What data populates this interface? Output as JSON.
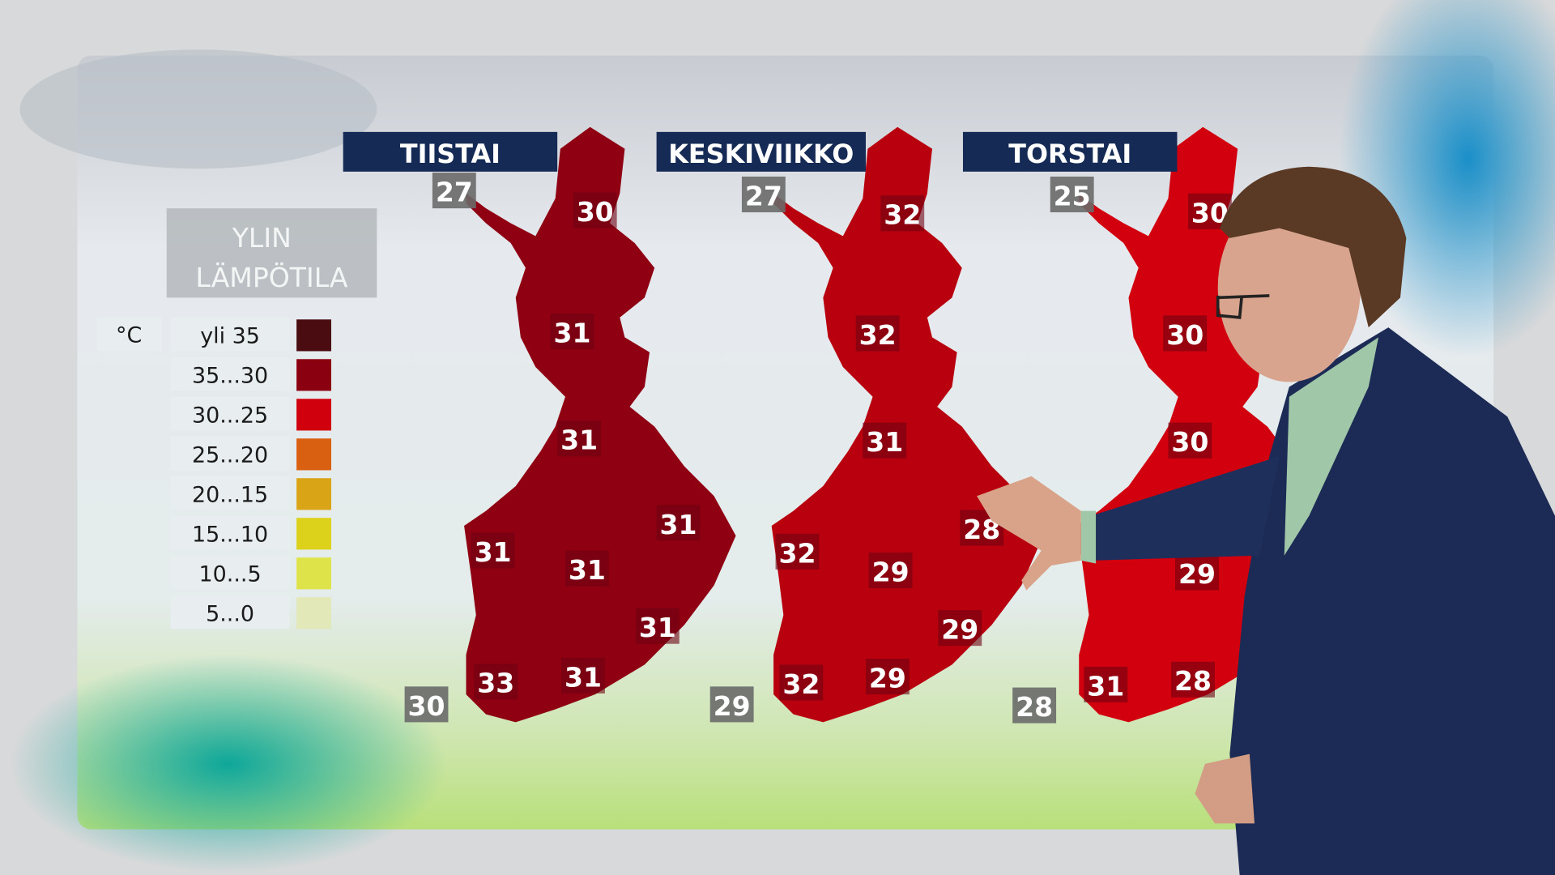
{
  "legend": {
    "title_line1": "YLIN",
    "title_line2": "LÄMPÖTILA",
    "unit": "°C",
    "items": [
      {
        "label": "yli 35",
        "color": "#4a0c10"
      },
      {
        "label": "35...30",
        "color": "#8a0010"
      },
      {
        "label": "30...25",
        "color": "#d0000c"
      },
      {
        "label": "25...20",
        "color": "#d86010"
      },
      {
        "label": "20...15",
        "color": "#d9a516"
      },
      {
        "label": "15...10",
        "color": "#dcd21c"
      },
      {
        "label": "10...5",
        "color": "#dfe34a"
      },
      {
        "label": "5...0",
        "color": "#e2e8b8"
      }
    ]
  },
  "days": [
    {
      "title": "TIISTAI",
      "map_color": "#8e0012",
      "temps": [
        "27",
        "30",
        "31",
        "31",
        "31",
        "31",
        "31",
        "31",
        "33",
        "31",
        "30"
      ]
    },
    {
      "title": "KESKIVIIKKO",
      "map_color": "#b8000f",
      "temps": [
        "27",
        "32",
        "32",
        "31",
        "28",
        "32",
        "29",
        "29",
        "32",
        "29",
        "29"
      ]
    },
    {
      "title": "TORSTAI",
      "map_color": "#d2000e",
      "temps": [
        "25",
        "30",
        "30",
        "30",
        "29",
        "31",
        "28",
        "28"
      ]
    }
  ]
}
